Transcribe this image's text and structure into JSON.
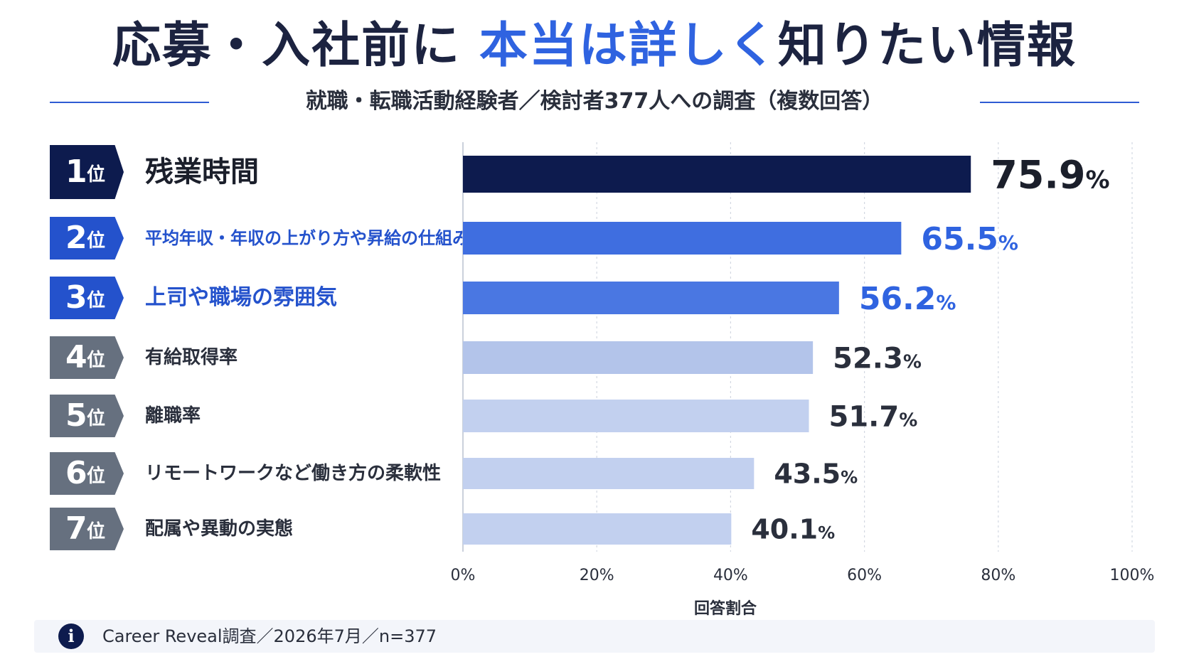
{
  "title": {
    "part1": "応募・入社前に",
    "highlight": "本当は詳しく",
    "part2": "知りたい情報"
  },
  "subtitle": "就職・転職活動経験者／検討者377人への調査（複数回答）",
  "ranks": [
    {
      "num": "1",
      "unit": "位",
      "label": "残業時間"
    },
    {
      "num": "2",
      "unit": "位",
      "label": "平均年収・年収の上がり方や昇給の仕組み"
    },
    {
      "num": "3",
      "unit": "位",
      "label": "上司や職場の雰囲気"
    },
    {
      "num": "4",
      "unit": "位",
      "label": "有給取得率"
    },
    {
      "num": "5",
      "unit": "位",
      "label": "離職率"
    },
    {
      "num": "6",
      "unit": "位",
      "label": "リモートワークなど働き方の柔軟性"
    },
    {
      "num": "7",
      "unit": "位",
      "label": "配属や異動の実態"
    }
  ],
  "colors": {
    "navy": "#0d1b4e",
    "blue": "#2f63e0",
    "blue2": "#4a77e2",
    "light": "#b3c4ea",
    "lighter": "#c2d0ef",
    "gray_badge": "#66707f",
    "blue_badge": "#2452cc"
  },
  "chart_data": {
    "type": "bar",
    "orientation": "horizontal",
    "categories": [
      "残業時間",
      "平均年収・年収の上がり方や昇給の仕組み",
      "上司や職場の雰囲気",
      "有給取得率",
      "離職率",
      "リモートワークなど働き方の柔軟性",
      "配属や異動の実態"
    ],
    "values": [
      75.9,
      65.5,
      56.2,
      52.3,
      51.7,
      43.5,
      40.1
    ],
    "value_unit": "%",
    "xlim": [
      0,
      100
    ],
    "ticks": [
      0,
      20,
      40,
      60,
      80,
      100
    ],
    "tick_suffix": "%",
    "xlabel": "回答割合（%）",
    "grid": true
  },
  "footer": {
    "icon": "info-icon",
    "text": "Career Reveal調査／2026年7月／n=377"
  }
}
